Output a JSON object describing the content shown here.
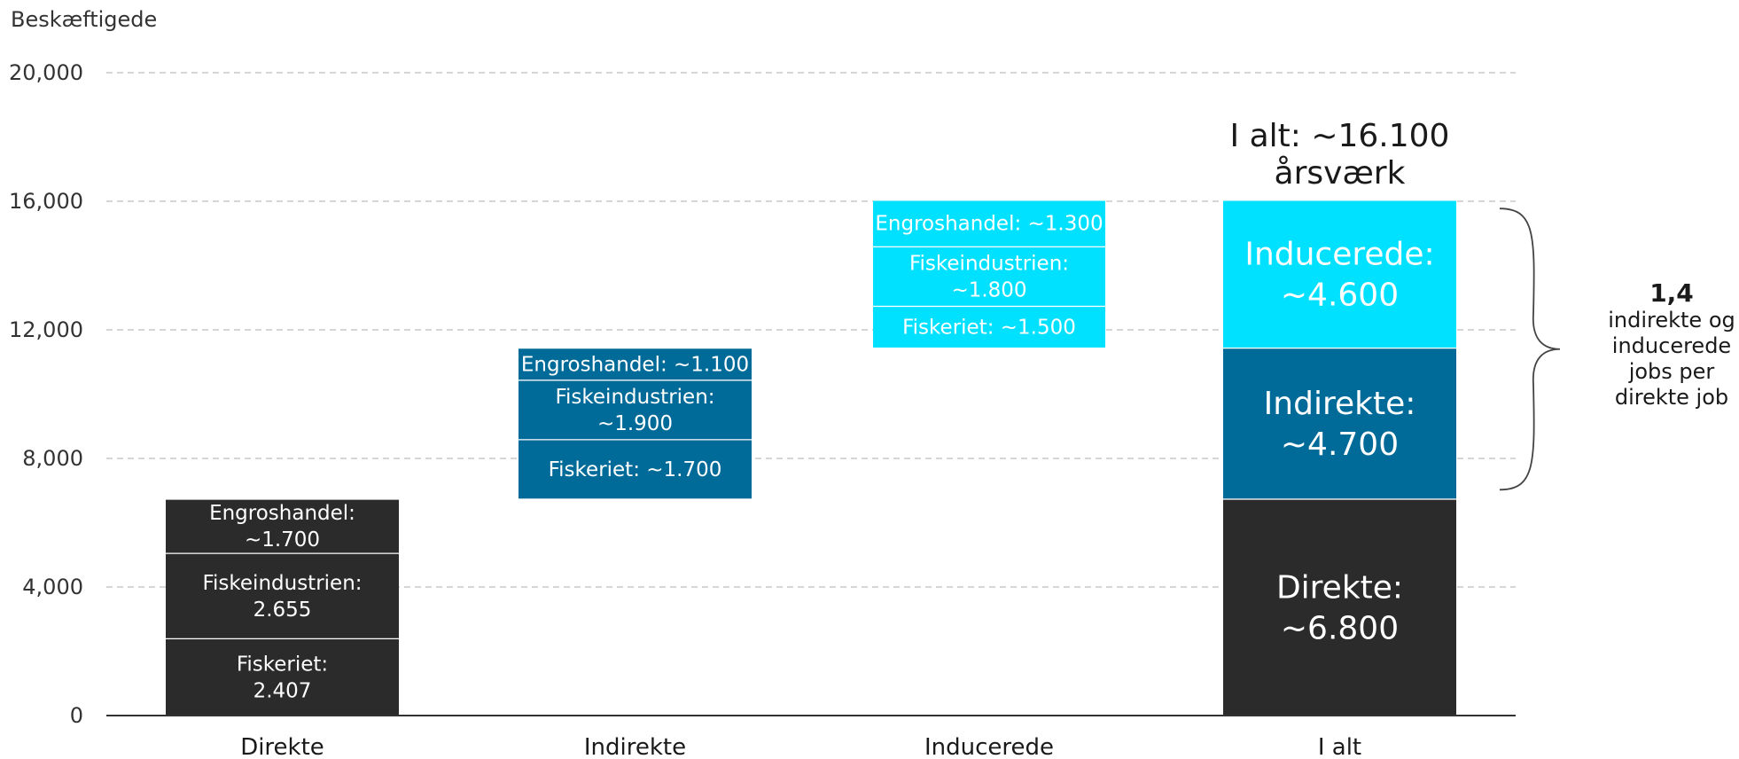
{
  "chart_data": {
    "type": "bar",
    "ylabel": "Beskæftigede",
    "ylim": [
      0,
      20000
    ],
    "yticks": [
      "0",
      "4,000",
      "8,000",
      "12,000",
      "16,000",
      "20,000"
    ],
    "ytick_values": [
      0,
      4000,
      8000,
      12000,
      16000,
      20000
    ],
    "categories": [
      "Direkte",
      "Indirekte",
      "Inducerede",
      "I alt"
    ],
    "grid": true,
    "colors": {
      "direkte": "#2b2b2b",
      "indirekte": "#006a99",
      "inducerede": "#00e0ff"
    },
    "bars": [
      {
        "category": "Direkte",
        "color": "#2b2b2b",
        "segments": [
          {
            "label": [
              "Fiskeriet:",
              "2.407"
            ],
            "start": 0,
            "end": 2407
          },
          {
            "label": [
              "Fiskeindustrien:",
              "2.655"
            ],
            "start": 2407,
            "end": 5062
          },
          {
            "label": [
              "Engroshandel:",
              "~1.700"
            ],
            "start": 5062,
            "end": 6750
          }
        ]
      },
      {
        "category": "Indirekte",
        "color": "#006a99",
        "segments": [
          {
            "label": [
              "Fiskeriet: ~1.700"
            ],
            "start": 6750,
            "end": 8600
          },
          {
            "label": [
              "Fiskeindustrien:",
              "~1.900"
            ],
            "start": 8600,
            "end": 10450
          },
          {
            "label": [
              "Engroshandel: ~1.100"
            ],
            "start": 10450,
            "end": 11450
          }
        ]
      },
      {
        "category": "Inducerede",
        "color": "#00e0ff",
        "segments": [
          {
            "label": [
              "Fiskeriet: ~1.500"
            ],
            "start": 11450,
            "end": 12750
          },
          {
            "label": [
              "Fiskeindustrien:",
              "~1.800"
            ],
            "start": 12750,
            "end": 14600
          },
          {
            "label": [
              "Engroshandel: ~1.300"
            ],
            "start": 14600,
            "end": 16050
          }
        ]
      },
      {
        "category": "I alt",
        "segments": [
          {
            "label": [
              "Direkte:",
              "~6.800"
            ],
            "start": 0,
            "end": 6750,
            "color": "#2b2b2b"
          },
          {
            "label": [
              "Indirekte:",
              "~4.700"
            ],
            "start": 6750,
            "end": 11450,
            "color": "#006a99"
          },
          {
            "label": [
              "Inducerede:",
              "~4.600"
            ],
            "start": 11450,
            "end": 16050,
            "color": "#00e0ff"
          }
        ]
      }
    ],
    "total_annotation": [
      "I alt: ~16.100",
      "årsværk"
    ],
    "ratio_annotation": [
      "1,4",
      "indirekte og",
      "inducerede",
      "jobs per",
      "direkte job"
    ]
  }
}
